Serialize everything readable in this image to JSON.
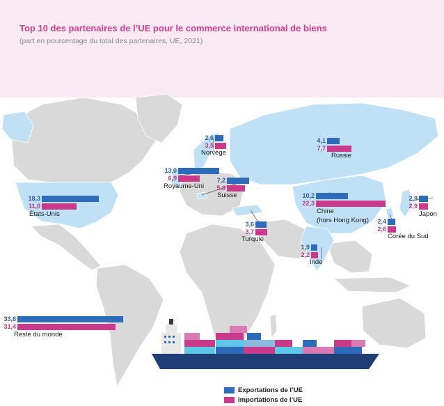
{
  "title": "Top 10 des partenaires de l’UE pour le commerce international de biens",
  "subtitle": "(part en pourcentage du total des partenaires, UE, 2021)",
  "colors": {
    "exports": "#2e6bb8",
    "imports": "#c93a8a",
    "title": "#d43f8d",
    "map_land": "#d9d9d9",
    "map_highlight": "#bfe0f5",
    "ship_hull": "#1f3e75"
  },
  "legend": {
    "exports_label": "Exportations de l’UE",
    "imports_label": "Importations de l’UE"
  },
  "partners": [
    {
      "name": "États-Unis",
      "exports": "18,3",
      "imports": "11,0",
      "exports_value": 18.3,
      "imports_value": 11.0
    },
    {
      "name": "Royaume-Uni",
      "exports": "13,0",
      "imports": "6,9",
      "exports_value": 13.0,
      "imports_value": 6.9
    },
    {
      "name": "Norvège",
      "exports": "2,6",
      "imports": "3,5",
      "exports_value": 2.6,
      "imports_value": 3.5
    },
    {
      "name": "Suisse",
      "exports": "7,2",
      "imports": "5,8",
      "exports_value": 7.2,
      "imports_value": 5.8
    },
    {
      "name": "Turquie",
      "exports": "3,6",
      "imports": "3,7",
      "exports_value": 3.6,
      "imports_value": 3.7
    },
    {
      "name": "Russie",
      "exports": "4,1",
      "imports": "7,7",
      "exports_value": 4.1,
      "imports_value": 7.7
    },
    {
      "name": "Chine",
      "name_line2": "(hors Hong Kong)",
      "exports": "10,2",
      "imports": "22,3",
      "exports_value": 10.2,
      "imports_value": 22.3
    },
    {
      "name": "Inde",
      "exports": "1,9",
      "imports": "2,2",
      "exports_value": 1.9,
      "imports_value": 2.2
    },
    {
      "name": "Corée du Sud",
      "exports": "2,4",
      "imports": "2,6",
      "exports_value": 2.4,
      "imports_value": 2.6
    },
    {
      "name": "Japon",
      "exports": "2,9",
      "imports": "2,9",
      "exports_value": 2.9,
      "imports_value": 2.9
    },
    {
      "name": "Reste du monde",
      "exports": "33,8",
      "imports": "31,4",
      "exports_value": 33.8,
      "imports_value": 31.4
    }
  ]
}
